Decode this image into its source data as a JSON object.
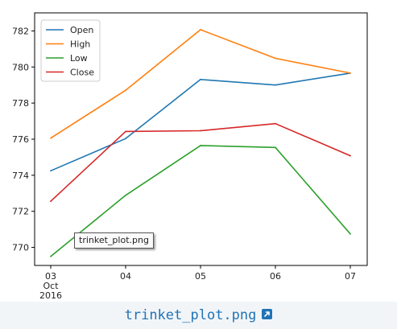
{
  "chart_data": {
    "type": "line",
    "x": [
      "03",
      "04",
      "05",
      "06",
      "07"
    ],
    "x_sublabels": [
      "Oct",
      "2016"
    ],
    "series": [
      {
        "name": "Open",
        "color": "#1f77b4",
        "values": [
          774.25,
          776.03,
          779.31,
          779.0,
          779.66
        ]
      },
      {
        "name": "High",
        "color": "#ff7f0e",
        "values": [
          776.06,
          778.71,
          782.07,
          780.48,
          779.66
        ]
      },
      {
        "name": "Low",
        "color": "#2ca02c",
        "values": [
          769.5,
          772.89,
          775.65,
          775.54,
          770.75
        ]
      },
      {
        "name": "Close",
        "color": "#d62728",
        "values": [
          772.56,
          776.43,
          776.47,
          776.86,
          775.08
        ]
      }
    ],
    "yticks": [
      770,
      772,
      774,
      776,
      778,
      780,
      782
    ],
    "ylim": [
      769.0,
      783.0
    ],
    "legend": "top-left",
    "grid": false
  },
  "tooltip": {
    "text": "trinket_plot.png"
  },
  "footer": {
    "link_text": "trinket_plot.png",
    "icon": "external-link-icon"
  }
}
